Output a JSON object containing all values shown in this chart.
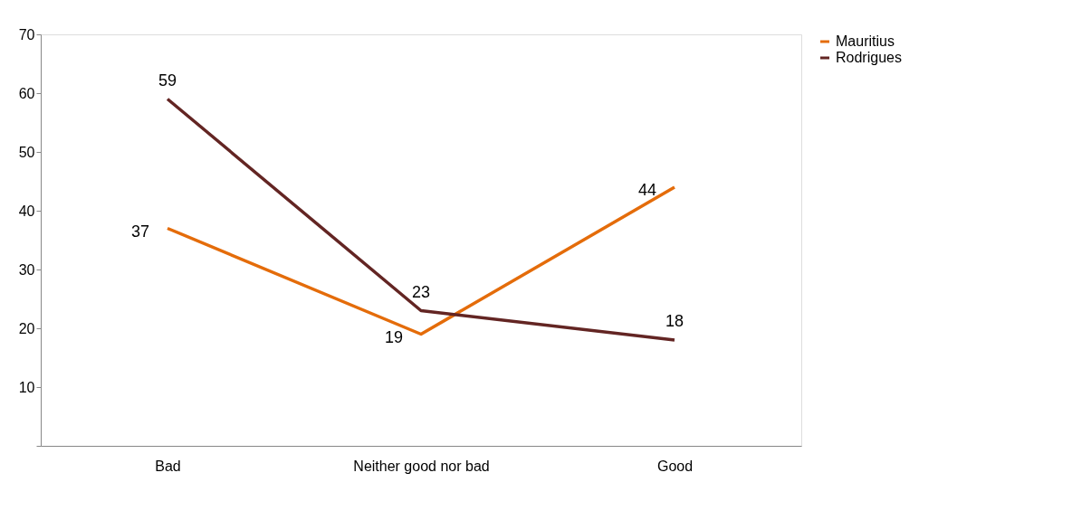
{
  "chart_data": {
    "type": "line",
    "categories": [
      "Bad",
      "Neither good nor bad",
      "Good"
    ],
    "series": [
      {
        "name": "Mauritius",
        "color": "#e46c0a",
        "values": [
          37,
          19,
          44
        ]
      },
      {
        "name": "Rodrigues",
        "color": "#632523",
        "values": [
          59,
          23,
          18
        ]
      }
    ],
    "ylim": [
      0,
      70
    ],
    "yticks": [
      {
        "value": 0,
        "label": null
      },
      10,
      20,
      30,
      40,
      50,
      60,
      70
    ],
    "data_labels": true,
    "legend": "right",
    "grid": false,
    "marker": "none",
    "line_style": "solid"
  }
}
